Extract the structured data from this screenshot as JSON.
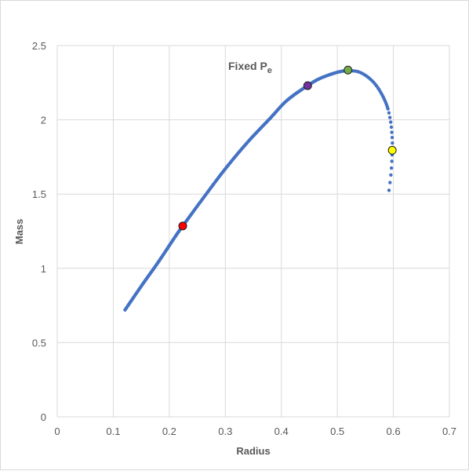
{
  "chart_data": {
    "type": "scatter",
    "title": "",
    "xlabel": "Radius",
    "ylabel": "Mass",
    "xlim": [
      0,
      0.7
    ],
    "ylim": [
      0,
      2.5
    ],
    "xticks": [
      "0",
      "0.1",
      "0.2",
      "0.3",
      "0.4",
      "0.5",
      "0.6",
      "0.7"
    ],
    "yticks": [
      "0",
      "0.5",
      "1",
      "1.5",
      "2",
      "2.5"
    ],
    "grid": true,
    "annotation": {
      "text": "Fixed P",
      "subscript": "e"
    },
    "series_color": "#4472c4",
    "curve_points": [
      [
        0.121,
        0.72
      ],
      [
        0.15,
        0.88
      ],
      [
        0.18,
        1.04
      ],
      [
        0.21,
        1.21
      ],
      [
        0.224,
        1.285
      ],
      [
        0.26,
        1.47
      ],
      [
        0.3,
        1.67
      ],
      [
        0.34,
        1.85
      ],
      [
        0.38,
        2.01
      ],
      [
        0.41,
        2.13
      ],
      [
        0.447,
        2.23
      ],
      [
        0.47,
        2.28
      ],
      [
        0.5,
        2.32
      ],
      [
        0.52,
        2.33
      ],
      [
        0.54,
        2.32
      ],
      [
        0.56,
        2.27
      ],
      [
        0.575,
        2.2
      ],
      [
        0.588,
        2.1
      ],
      [
        0.595,
        1.99
      ],
      [
        0.598,
        1.87
      ],
      [
        0.598,
        1.79
      ],
      [
        0.597,
        1.7
      ],
      [
        0.595,
        1.61
      ],
      [
        0.592,
        1.52
      ]
    ],
    "highlight_points": [
      {
        "x": 0.224,
        "y": 1.285,
        "color": "#ff0000"
      },
      {
        "x": 0.447,
        "y": 2.23,
        "color": "#7030a0"
      },
      {
        "x": 0.519,
        "y": 2.335,
        "color": "#70ad47"
      },
      {
        "x": 0.598,
        "y": 1.795,
        "color": "#ffff00"
      }
    ]
  }
}
